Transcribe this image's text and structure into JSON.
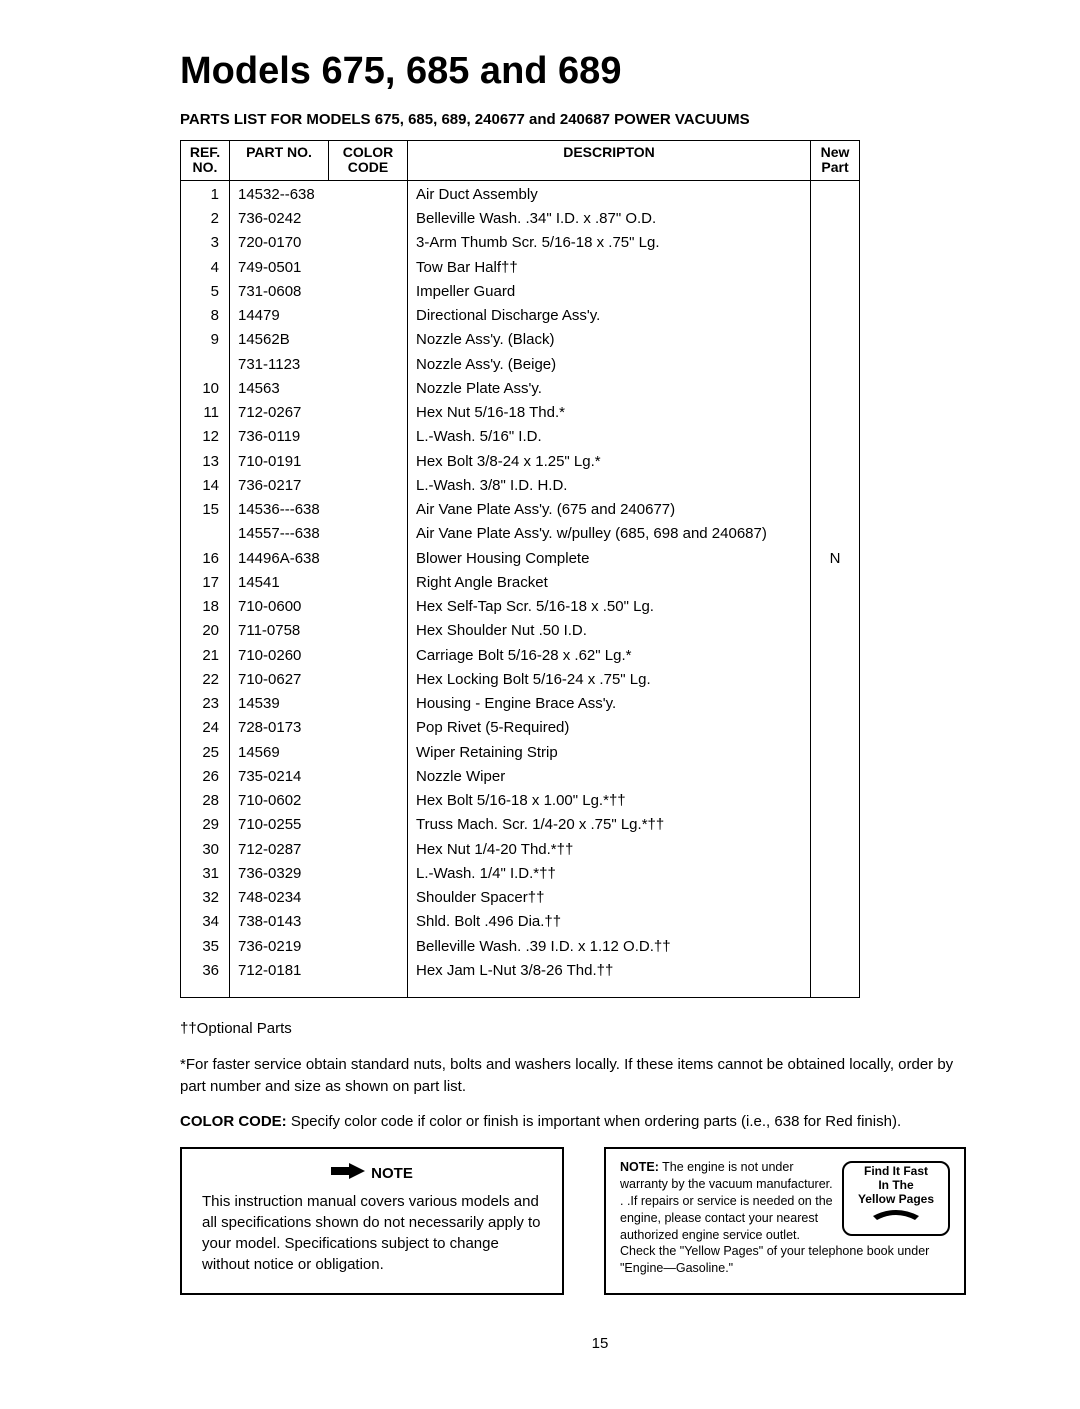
{
  "title": "Models 675, 685 and 689",
  "subtitle": "PARTS LIST FOR MODELS 675, 685, 689, 240677 and 240687  POWER VACUUMS",
  "headers": {
    "ref": "REF. NO.",
    "part": "PART NO.",
    "color": "COLOR CODE",
    "desc": "DESCRIPTON",
    "newpart": "New Part"
  },
  "rows": [
    {
      "ref": "1",
      "part": "14532--638",
      "desc": "Air Duct Assembly",
      "newpart": ""
    },
    {
      "ref": "2",
      "part": "736-0242",
      "desc": "Belleville Wash. .34\" I.D. x .87\" O.D.",
      "newpart": ""
    },
    {
      "ref": "3",
      "part": "720-0170",
      "desc": "3-Arm Thumb Scr.  5/16-18 x .75\" Lg.",
      "newpart": ""
    },
    {
      "ref": "4",
      "part": "749-0501",
      "desc": "Tow Bar Half††",
      "newpart": ""
    },
    {
      "ref": "5",
      "part": "731-0608",
      "desc": "Impeller Guard",
      "newpart": ""
    },
    {
      "ref": "8",
      "part": "14479",
      "desc": "Directional Discharge Ass'y.",
      "newpart": ""
    },
    {
      "ref": "9",
      "part": "14562B",
      "desc": "Nozzle Ass'y. (Black)",
      "newpart": ""
    },
    {
      "ref": "",
      "part": "731-1123",
      "desc": "Nozzle Ass'y. (Beige)",
      "newpart": ""
    },
    {
      "ref": "10",
      "part": "14563",
      "desc": "Nozzle Plate Ass'y.",
      "newpart": ""
    },
    {
      "ref": "11",
      "part": "712-0267",
      "desc": "Hex Nut 5/16-18 Thd.*",
      "newpart": ""
    },
    {
      "ref": "12",
      "part": "736-0119",
      "desc": "L.-Wash.  5/16\" I.D.",
      "newpart": ""
    },
    {
      "ref": "13",
      "part": "710-0191",
      "desc": "Hex Bolt 3/8-24 x 1.25\" Lg.*",
      "newpart": ""
    },
    {
      "ref": "14",
      "part": "736-0217",
      "desc": "L.-Wash.  3/8\" I.D. H.D.",
      "newpart": ""
    },
    {
      "ref": "15",
      "part": "14536---638",
      "desc": "Air Vane Plate Ass'y. (675 and 240677)",
      "newpart": ""
    },
    {
      "ref": "",
      "part": "14557---638",
      "desc": "Air Vane Plate Ass'y. w/pulley (685, 698 and 240687)",
      "newpart": ""
    },
    {
      "ref": "16",
      "part": "14496A-638",
      "desc": "Blower Housing Complete",
      "newpart": "N"
    },
    {
      "ref": "17",
      "part": "14541",
      "desc": "Right Angle Bracket",
      "newpart": ""
    },
    {
      "ref": "18",
      "part": "710-0600",
      "desc": "Hex Self-Tap Scr.  5/16-18 x .50\" Lg.",
      "newpart": ""
    },
    {
      "ref": "20",
      "part": "711-0758",
      "desc": "Hex Shoulder Nut .50 I.D.",
      "newpart": ""
    },
    {
      "ref": "21",
      "part": "710-0260",
      "desc": "Carriage Bolt 5/16-28 x .62\" Lg.*",
      "newpart": ""
    },
    {
      "ref": "22",
      "part": "710-0627",
      "desc": "Hex Locking Bolt 5/16-24 x .75\" Lg.",
      "newpart": ""
    },
    {
      "ref": "23",
      "part": "14539",
      "desc": "Housing - Engine Brace Ass'y.",
      "newpart": ""
    },
    {
      "ref": "24",
      "part": "728-0173",
      "desc": "Pop Rivet (5-Required)",
      "newpart": ""
    },
    {
      "ref": "25",
      "part": "14569",
      "desc": "Wiper Retaining Strip",
      "newpart": ""
    },
    {
      "ref": "26",
      "part": "735-0214",
      "desc": "Nozzle Wiper",
      "newpart": ""
    },
    {
      "ref": "28",
      "part": "710-0602",
      "desc": "Hex Bolt 5/16-18 x 1.00\" Lg.*††",
      "newpart": ""
    },
    {
      "ref": "29",
      "part": "710-0255",
      "desc": "Truss Mach. Scr.  1/4-20 x .75\" Lg.*††",
      "newpart": ""
    },
    {
      "ref": "30",
      "part": "712-0287",
      "desc": "Hex Nut 1/4-20 Thd.*††",
      "newpart": ""
    },
    {
      "ref": "31",
      "part": "736-0329",
      "desc": "L.-Wash.  1/4\" I.D.*††",
      "newpart": ""
    },
    {
      "ref": "32",
      "part": "748-0234",
      "desc": "Shoulder Spacer††",
      "newpart": ""
    },
    {
      "ref": "34",
      "part": "738-0143",
      "desc": "Shld. Bolt .496 Dia.††",
      "newpart": ""
    },
    {
      "ref": "35",
      "part": "736-0219",
      "desc": "Belleville Wash.  .39 I.D. x 1.12 O.D.††",
      "newpart": ""
    },
    {
      "ref": "36",
      "part": "712-0181",
      "desc": "Hex Jam L-Nut 3/8-26 Thd.††",
      "newpart": ""
    }
  ],
  "footnotes": {
    "opt": "††Optional Parts",
    "faster": "*For faster service obtain standard nuts, bolts and washers locally. If these items cannot be obtained locally, order by part number and size as shown on part list.",
    "colorcode_label": "COLOR CODE:",
    "colorcode_text": " Specify color code if color or finish is important when ordering parts (i.e., 638 for Red finish)."
  },
  "note_left": {
    "header": "NOTE",
    "body": "This instruction manual covers various models and all specifications shown do not necessarily apply to your model. Specifications subject to change without notice or obligation."
  },
  "note_right": {
    "label": "NOTE:",
    "body": " The engine is not under warranty by the vacuum manufacturer. . .If repairs or service is needed on the engine, please contact your nearest authorized engine service outlet. Check the \"Yellow Pages\" of your telephone book under \"Engine—Gasoline.\"",
    "badge_line1": "Find It Fast",
    "badge_line2": "In The",
    "badge_line3": "Yellow Pages"
  },
  "page_number": "15"
}
